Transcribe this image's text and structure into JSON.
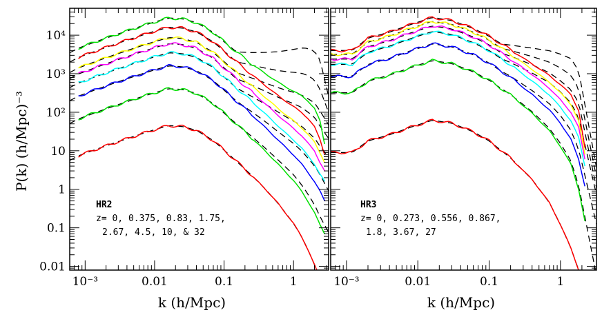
{
  "chart_data": [
    {
      "type": "line",
      "panel": "left",
      "xscale": "log",
      "yscale": "log",
      "xlim": [
        0.0006,
        3.2
      ],
      "ylim": [
        0.008,
        50000
      ],
      "xlabel": "k (h/Mpc)",
      "ylabel": "P(k) (h/Mpc)⁻³",
      "x_tick_labels": [
        "10⁻³",
        "0.01",
        "0.1",
        "1"
      ],
      "y_tick_labels": [
        "0.01",
        "0.1",
        "1",
        "10",
        "10²",
        "10³",
        "10⁴"
      ],
      "annotation": {
        "title": "HR2",
        "line1": "z= 0, 0.375, 0.83, 1.75,",
        "line2": "2.67, 4.5, 10, & 32"
      },
      "series": [
        {
          "color": "#00e000",
          "amp": 29000,
          "dev": 0.3,
          "tail": 2.2,
          "k": [
            0.0008,
            0.0015,
            0.003,
            0.006,
            0.01,
            0.016,
            0.025,
            0.04,
            0.07,
            0.1,
            0.15,
            0.25,
            0.4,
            0.6,
            0.8,
            1.0,
            1.3,
            1.6,
            2.0,
            2.4,
            2.8
          ],
          "P": [
            4600,
            7000,
            10800,
            16400,
            22100,
            28000,
            26600,
            21400,
            11800,
            6800,
            3700,
            1800,
            980,
            600,
            440,
            350,
            270,
            200,
            125,
            60,
            15
          ]
        },
        {
          "color": "#ff0000",
          "amp": 16600,
          "dev": 0.25,
          "tail": 1.8,
          "k": [
            0.0008,
            0.0015,
            0.003,
            0.006,
            0.01,
            0.016,
            0.025,
            0.04,
            0.07,
            0.1,
            0.15,
            0.25,
            0.4,
            0.6,
            0.8,
            1.0,
            1.3,
            1.6,
            2.0,
            2.4,
            2.8
          ],
          "P": [
            2640,
            4020,
            6220,
            9450,
            12700,
            16100,
            15300,
            12200,
            6700,
            3860,
            2050,
            960,
            480,
            270,
            185,
            140,
            100,
            70,
            42,
            20,
            8
          ]
        },
        {
          "color": "#ffff00",
          "amp": 8900,
          "dev": 0.2,
          "tail": 1.5,
          "k": [
            0.0008,
            0.0015,
            0.003,
            0.006,
            0.01,
            0.016,
            0.025,
            0.04,
            0.07,
            0.1,
            0.15,
            0.25,
            0.4,
            0.6,
            0.8,
            1.0,
            1.3,
            1.6,
            2.0,
            2.4,
            2.8
          ],
          "P": [
            1410,
            2160,
            3340,
            5070,
            6800,
            8650,
            8220,
            6560,
            3570,
            2050,
            1080,
            490,
            235,
            125,
            82,
            60,
            40,
            27,
            17,
            9,
            5
          ]
        },
        {
          "color": "#ff00ff",
          "amp": 6200,
          "dev": 0.15,
          "tail": 1.3,
          "k": [
            0.0008,
            0.0015,
            0.003,
            0.006,
            0.01,
            0.016,
            0.025,
            0.04,
            0.07,
            0.1,
            0.15,
            0.25,
            0.4,
            0.6,
            0.8,
            1.0,
            1.3,
            1.6,
            2.0,
            2.4,
            2.8
          ],
          "P": [
            985,
            1500,
            2330,
            3530,
            4740,
            6030,
            5730,
            4570,
            2490,
            1420,
            750,
            340,
            160,
            83,
            53,
            38,
            25,
            16,
            10,
            5,
            3
          ]
        },
        {
          "color": "#00ffff",
          "amp": 3600,
          "dev": 0.1,
          "tail": 1.0,
          "k": [
            0.0008,
            0.0015,
            0.003,
            0.006,
            0.01,
            0.016,
            0.025,
            0.04,
            0.07,
            0.1,
            0.15,
            0.25,
            0.4,
            0.6,
            0.8,
            1.0,
            1.3,
            1.6,
            2.0,
            2.4,
            2.8
          ],
          "P": [
            572,
            872,
            1350,
            2050,
            2750,
            3500,
            3330,
            2650,
            1440,
            820,
            430,
            190,
            88,
            44,
            27,
            19,
            12,
            7.5,
            4.5,
            2.5,
            1.6
          ]
        },
        {
          "color": "#0000ff",
          "amp": 1650,
          "dev": 0.05,
          "tail": 0.6,
          "k": [
            0.0008,
            0.0015,
            0.003,
            0.006,
            0.01,
            0.016,
            0.025,
            0.04,
            0.07,
            0.1,
            0.15,
            0.25,
            0.4,
            0.6,
            0.8,
            1.0,
            1.3,
            1.6,
            2.0,
            2.4,
            2.8
          ],
          "P": [
            262,
            400,
            620,
            940,
            1260,
            1600,
            1520,
            1210,
            660,
            375,
            196,
            86,
            39,
            19,
            11.5,
            7.8,
            4.6,
            2.8,
            1.6,
            0.9,
            0.5
          ]
        },
        {
          "color": "#00e000",
          "amp": 420,
          "dev": 0.0,
          "tail": 0.3,
          "k": [
            0.0008,
            0.0015,
            0.003,
            0.006,
            0.01,
            0.016,
            0.025,
            0.04,
            0.07,
            0.1,
            0.15,
            0.25,
            0.4,
            0.6,
            0.8,
            1.0,
            1.3,
            1.6,
            2.0,
            2.4,
            2.8
          ],
          "P": [
            67,
            102,
            158,
            240,
            320,
            410,
            390,
            310,
            168,
            95,
            50,
            21.5,
            9.5,
            4.5,
            2.6,
            1.7,
            0.9,
            0.5,
            0.25,
            0.12,
            0.07
          ]
        },
        {
          "color": "#ff0000",
          "amp": 46,
          "dev": 0.0,
          "tail": 0.0,
          "k": [
            0.0008,
            0.0015,
            0.003,
            0.006,
            0.01,
            0.016,
            0.025,
            0.04,
            0.07,
            0.1,
            0.15,
            0.25,
            0.4,
            0.6,
            0.8,
            1.0,
            1.3,
            1.6,
            2.0,
            2.4,
            2.8
          ],
          "P": [
            7.4,
            11.2,
            17.3,
            26.2,
            35.3,
            45,
            42.7,
            34,
            18.4,
            10.4,
            5.4,
            2.3,
            0.98,
            0.43,
            0.22,
            0.13,
            0.06,
            0.028,
            0.011,
            0.005,
            0.002
          ]
        }
      ]
    },
    {
      "type": "line",
      "panel": "right",
      "xscale": "log",
      "yscale": "log",
      "xlim": [
        0.0006,
        3.2
      ],
      "ylim": [
        0.008,
        50000
      ],
      "xlabel": "k (h/Mpc)",
      "ylabel": "",
      "x_tick_labels": [
        "10⁻³",
        "0.01",
        "0.1",
        "1"
      ],
      "annotation": {
        "title": "HR3",
        "line1": "z= 0, 0.273, 0.556, 0.867,",
        "line2": "1.8, 3.67, 27"
      },
      "series": [
        {
          "color": "#ff0000",
          "amp": 29000,
          "dev": 0.3,
          "tail": 1.6,
          "k": [
            0.0006,
            0.0012,
            0.002,
            0.004,
            0.008,
            0.016,
            0.03,
            0.06,
            0.1,
            0.2,
            0.4,
            0.7,
            1.0,
            1.4,
            1.8,
            2.2
          ],
          "P": [
            4000,
            4000,
            8400,
            12000,
            19000,
            29000,
            24000,
            15000,
            9400,
            4200,
            1800,
            900,
            520,
            290,
            110,
            12
          ]
        },
        {
          "color": "#ffff00",
          "amp": 23000,
          "dev": 0.25,
          "tail": 1.3,
          "k": [
            0.0006,
            0.0012,
            0.002,
            0.004,
            0.008,
            0.016,
            0.03,
            0.06,
            0.1,
            0.2,
            0.4,
            0.7,
            1.0,
            1.4,
            1.8,
            2.2
          ],
          "P": [
            3200,
            3200,
            6600,
            9500,
            15000,
            23000,
            19000,
            12000,
            7400,
            3200,
            1300,
            600,
            320,
            160,
            60,
            8
          ]
        },
        {
          "color": "#ff00ff",
          "amp": 17500,
          "dev": 0.2,
          "tail": 1.0,
          "k": [
            0.0006,
            0.0012,
            0.002,
            0.004,
            0.008,
            0.016,
            0.03,
            0.06,
            0.1,
            0.2,
            0.4,
            0.7,
            1.0,
            1.4,
            1.8,
            2.2
          ],
          "P": [
            2400,
            2400,
            5000,
            7200,
            11500,
            17500,
            14500,
            9000,
            5600,
            2400,
            950,
            420,
            210,
            100,
            40,
            6
          ]
        },
        {
          "color": "#00ffff",
          "amp": 12500,
          "dev": 0.15,
          "tail": 0.8,
          "k": [
            0.0006,
            0.0012,
            0.002,
            0.004,
            0.008,
            0.016,
            0.03,
            0.06,
            0.1,
            0.2,
            0.4,
            0.7,
            1.0,
            1.4,
            1.8,
            2.2
          ],
          "P": [
            1750,
            1750,
            3600,
            5200,
            8200,
            12500,
            10400,
            6400,
            4000,
            1700,
            650,
            280,
            135,
            60,
            22,
            4
          ]
        },
        {
          "color": "#0000ff",
          "amp": 6000,
          "dev": 0.05,
          "tail": 0.4,
          "k": [
            0.0006,
            0.0012,
            0.002,
            0.004,
            0.008,
            0.016,
            0.03,
            0.06,
            0.1,
            0.2,
            0.4,
            0.7,
            1.0,
            1.4,
            1.8,
            2.2
          ],
          "P": [
            850,
            850,
            1750,
            2500,
            3950,
            6000,
            5000,
            3100,
            1900,
            800,
            290,
            115,
            52,
            20,
            6,
            1.2
          ]
        },
        {
          "color": "#00e000",
          "amp": 2200,
          "dev": 0.0,
          "tail": 0.15,
          "k": [
            0.0006,
            0.0012,
            0.002,
            0.004,
            0.008,
            0.016,
            0.03,
            0.06,
            0.1,
            0.2,
            0.4,
            0.7,
            1.0,
            1.4,
            1.8,
            2.2
          ],
          "P": [
            320,
            320,
            640,
            920,
            1450,
            2200,
            1830,
            1120,
            680,
            280,
            95,
            33,
            13,
            4.5,
            1,
            0.15
          ]
        },
        {
          "color": "#ff0000",
          "amp": 62,
          "dev": 0.0,
          "tail": 0.0,
          "k": [
            0.0006,
            0.0012,
            0.002,
            0.004,
            0.008,
            0.016,
            0.03,
            0.06,
            0.1,
            0.2,
            0.4,
            0.7,
            1.0,
            1.4,
            1.8,
            2.2
          ],
          "P": [
            9,
            9,
            18,
            26,
            41,
            62,
            52,
            31,
            18,
            6.5,
            1.8,
            0.45,
            0.12,
            0.03,
            0.008,
            0.004
          ]
        }
      ]
    }
  ]
}
